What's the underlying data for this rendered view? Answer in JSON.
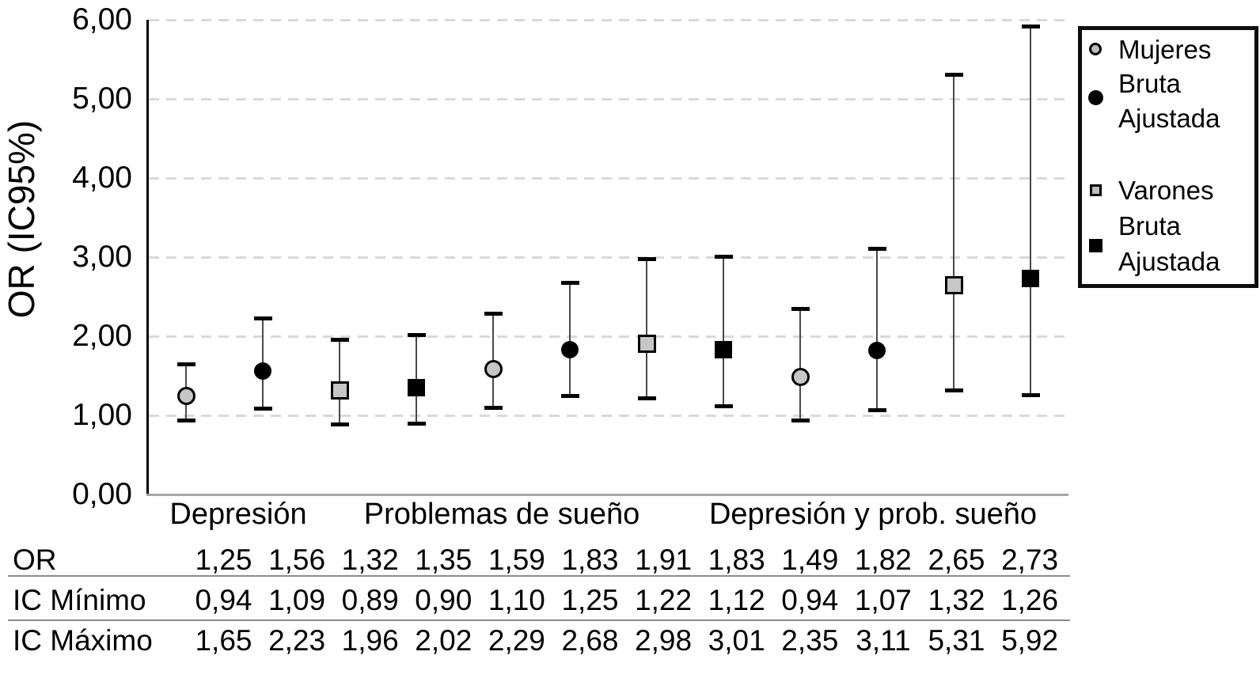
{
  "chart_data": {
    "type": "scatter",
    "subtype": "point-estimates-with-error-bars",
    "title": "",
    "ylabel": "OR (IC95%)",
    "xlabel": "",
    "ylim": [
      0,
      6
    ],
    "ytick_labels": [
      "0,00",
      "1,00",
      "2,00",
      "3,00",
      "4,00",
      "5,00",
      "6,00"
    ],
    "grid": "horizontal-dashed",
    "legend_position": "top-right",
    "categories": [
      "Depresión",
      "Problemas de sueño",
      "Depresión y prob. sueño"
    ],
    "series": [
      {
        "name": "Mujeres Bruta",
        "marker": "circle",
        "fill": "light",
        "or": [
          1.25,
          1.59,
          1.49
        ],
        "ci_min": [
          0.94,
          1.1,
          0.94
        ],
        "ci_max": [
          1.65,
          2.29,
          2.35
        ]
      },
      {
        "name": "Mujeres Ajustada",
        "marker": "circle",
        "fill": "dark",
        "or": [
          1.56,
          1.83,
          1.82
        ],
        "ci_min": [
          1.09,
          1.25,
          1.07
        ],
        "ci_max": [
          2.23,
          2.68,
          3.11
        ]
      },
      {
        "name": "Varones Bruta",
        "marker": "square",
        "fill": "light",
        "or": [
          1.32,
          1.91,
          2.65
        ],
        "ci_min": [
          0.89,
          1.22,
          1.32
        ],
        "ci_max": [
          1.96,
          2.98,
          5.31
        ]
      },
      {
        "name": "Varones Ajustada",
        "marker": "square",
        "fill": "dark",
        "or": [
          1.35,
          1.83,
          2.73
        ],
        "ci_min": [
          0.9,
          1.12,
          1.26
        ],
        "ci_max": [
          2.02,
          3.01,
          5.92
        ]
      }
    ]
  },
  "legend": {
    "groups": [
      {
        "marker": "circle",
        "lines": [
          "Mujeres",
          "Bruta",
          "Ajustada"
        ]
      },
      {
        "marker": "square",
        "lines": [
          "Varones",
          "Bruta",
          "Ajustada"
        ]
      }
    ]
  },
  "table": {
    "rows": [
      {
        "label": "OR",
        "values": [
          "1,25",
          "1,56",
          "1,32",
          "1,35",
          "1,59",
          "1,83",
          "1,91",
          "1,83",
          "1,49",
          "1,82",
          "2,65",
          "2,73"
        ]
      },
      {
        "label": "IC Mínimo",
        "values": [
          "0,94",
          "1,09",
          "0,89",
          "0,90",
          "1,10",
          "1,25",
          "1,22",
          "1,12",
          "0,94",
          "1,07",
          "1,32",
          "1,26"
        ]
      },
      {
        "label": "IC Máximo",
        "values": [
          "1,65",
          "2,23",
          "1,96",
          "2,02",
          "2,29",
          "2,68",
          "2,98",
          "3,01",
          "2,35",
          "3,11",
          "5,31",
          "5,92"
        ]
      }
    ]
  },
  "colors": {
    "light_marker_fill": "#c6c6c6",
    "dark_marker_fill": "#000000",
    "error_bar_line": "#4a4a4a",
    "error_bar_cap": "#000000",
    "gridline": "#d9d9d9",
    "x_axis_line": "#a6a6a6",
    "y_axis_line": "#000000",
    "table_rule": "#8c8c8c"
  }
}
